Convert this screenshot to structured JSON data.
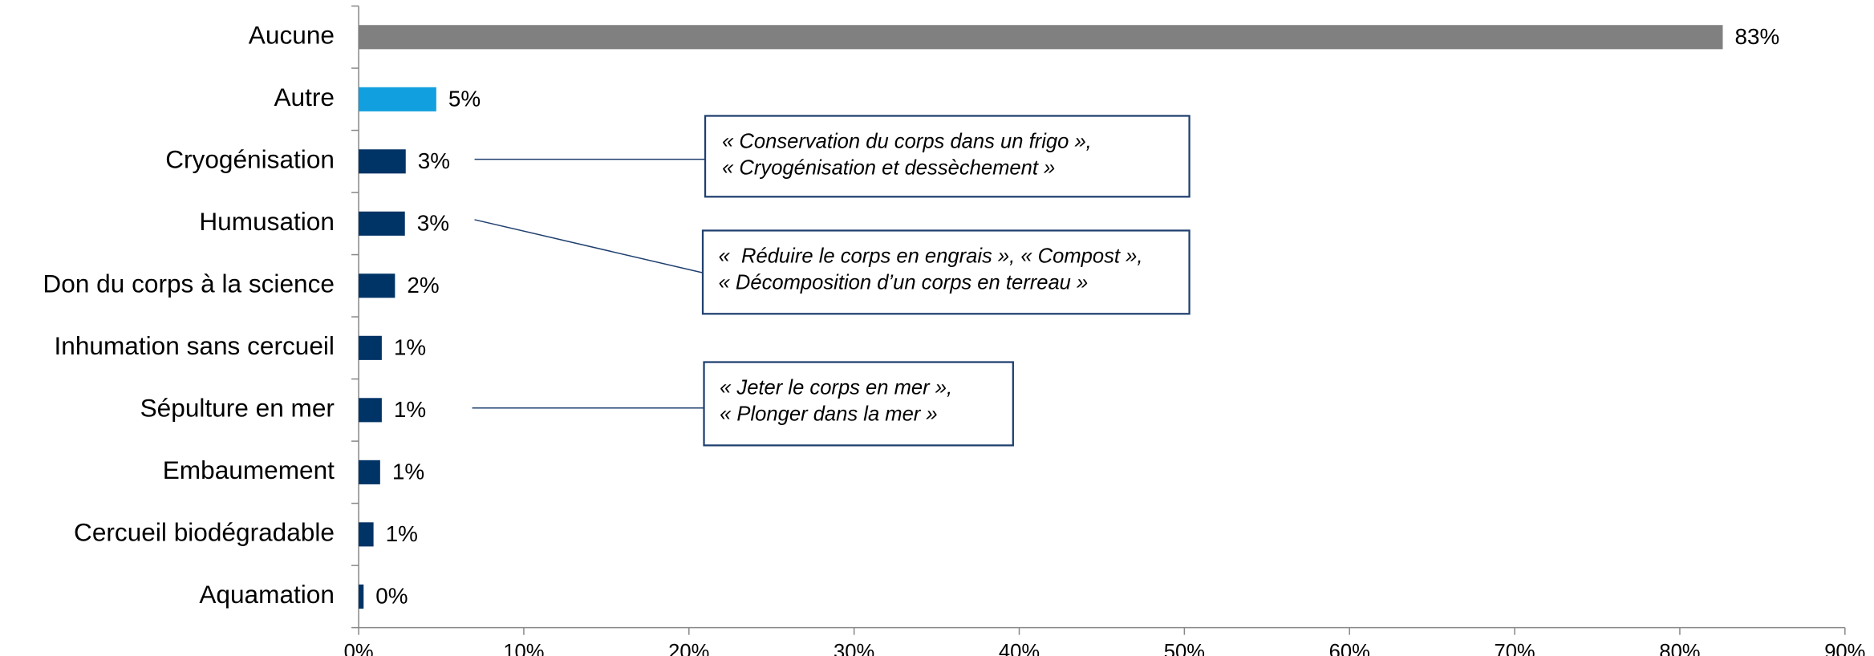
{
  "chart_data": {
    "type": "bar",
    "orientation": "horizontal",
    "categories": [
      "Aucune",
      "Autre",
      "Cryogénisation",
      "Humusation",
      "Don du corps à la science",
      "Inhumation sans cercueil",
      "Sépulture en mer",
      "Embaumement",
      "Cercueil biodégradable",
      "Aquamation"
    ],
    "values": [
      82.6,
      4.7,
      2.85,
      2.8,
      2.2,
      1.4,
      1.4,
      1.3,
      0.9,
      0.3
    ],
    "value_labels": [
      "83%",
      "5%",
      "3%",
      "3%",
      "2%",
      "1%",
      "1%",
      "1%",
      "1%",
      "0%"
    ],
    "colors": [
      "#808080",
      "#119fdf",
      "#003366",
      "#003366",
      "#003366",
      "#003366",
      "#003366",
      "#003366",
      "#003366",
      "#003366"
    ],
    "xlim": [
      0,
      90
    ],
    "xticks": [
      {
        "value": 0,
        "label": "0%"
      },
      {
        "value": 10,
        "label": "10%"
      },
      {
        "value": 20,
        "label": "20%"
      },
      {
        "value": 30,
        "label": "30%"
      },
      {
        "value": 40,
        "label": "40%"
      },
      {
        "value": 50,
        "label": "50%"
      },
      {
        "value": 60,
        "label": "60%"
      },
      {
        "value": 70,
        "label": "70%"
      },
      {
        "value": 80,
        "label": "80%"
      },
      {
        "value": 90,
        "label": "90%"
      }
    ],
    "annotations": [
      [
        "« Conservation du corps dans un frigo »,",
        "« Cryogénisation et dessèchement »"
      ],
      [
        "«  Réduire le corps en engrais », « Compost »,",
        "« Décomposition d’un corps en terreau »"
      ],
      [
        "« Jeter le corps en mer »,",
        "« Plonger dans la mer »"
      ]
    ]
  }
}
